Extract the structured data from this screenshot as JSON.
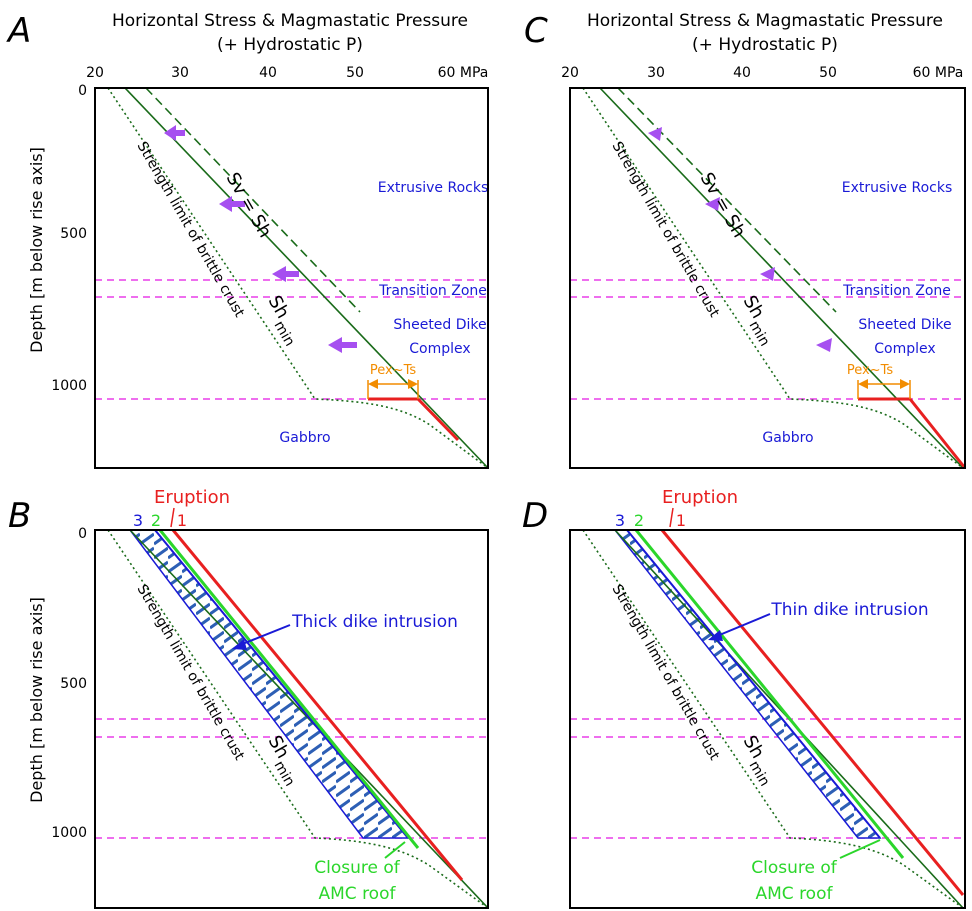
{
  "panels": {
    "A": {
      "letter": "A"
    },
    "B": {
      "letter": "B"
    },
    "C": {
      "letter": "C"
    },
    "D": {
      "letter": "D"
    }
  },
  "header": {
    "title_line1": "Horizontal Stress & Magmastatic Pressure",
    "title_line2": "(+ Hydrostatic P)",
    "x_ticks": [
      "20",
      "30",
      "40",
      "50",
      "60 MPa"
    ]
  },
  "axis": {
    "ylabel": "Depth [m below rise axis]",
    "y_ticks": [
      "0",
      "500",
      "1000"
    ]
  },
  "labels": {
    "extrusive": "Extrusive Rocks",
    "transition": "Transition Zone",
    "sheeted_1": "Sheeted Dike",
    "sheeted_2": "Complex",
    "gabbro": "Gabbro",
    "strength": "Strength limit of brittle crust",
    "sv_sh": "Sv = Sh",
    "sh": "Sh",
    "min": "min",
    "pex": "Pex~Ts",
    "eruption": "Eruption",
    "stage_1": "1",
    "stage_2": "2",
    "stage_3": "3",
    "thick": "Thick dike intrusion",
    "thin": "Thin dike intrusion",
    "closure_1": "Closure of",
    "closure_2": "AMC roof"
  },
  "colors": {
    "dark_green": "#1a6b1a",
    "magenta_dash": "#e83ee8",
    "red": "#e82020",
    "bright_green": "#2bd62b",
    "blue": "#1a1ad6",
    "purple": "#a64ff0",
    "orange": "#f28c00"
  }
}
